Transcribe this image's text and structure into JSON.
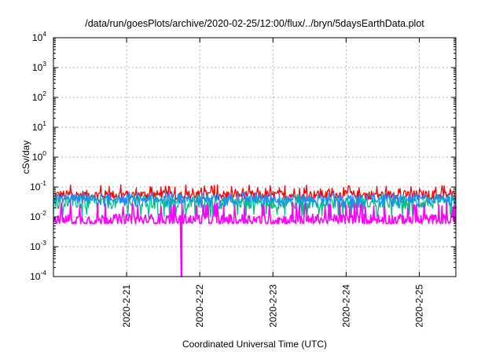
{
  "chart_data": {
    "type": "line",
    "title": "/data/run/goesPlots/archive/2020-02-25/12:00/flux/../bryn/5daysEarthData.plot",
    "xlabel": "Coordinated Universal Time (UTC)",
    "ylabel": "cSv/day",
    "yscale": "log",
    "ylim": [
      0.0001,
      10000
    ],
    "y_ticks": [
      {
        "base": "10",
        "exp": "-4",
        "value": 0.0001
      },
      {
        "base": "10",
        "exp": "-3",
        "value": 0.001
      },
      {
        "base": "10",
        "exp": "-2",
        "value": 0.01
      },
      {
        "base": "10",
        "exp": "-1",
        "value": 0.1
      },
      {
        "base": "10",
        "exp": "0",
        "value": 1
      },
      {
        "base": "10",
        "exp": "1",
        "value": 10
      },
      {
        "base": "10",
        "exp": "2",
        "value": 100
      },
      {
        "base": "10",
        "exp": "3",
        "value": 1000
      },
      {
        "base": "10",
        "exp": "4",
        "value": 10000
      }
    ],
    "xlim": [
      "2020-02-20T00:00",
      "2020-02-25T12:00"
    ],
    "x_ticks": [
      {
        "label": "2020-2-21",
        "value": "2020-02-21T00:00"
      },
      {
        "label": "2020-2-22",
        "value": "2020-02-22T00:00"
      },
      {
        "label": "2020-2-23",
        "value": "2020-02-23T00:00"
      },
      {
        "label": "2020-2-24",
        "value": "2020-02-24T00:00"
      },
      {
        "label": "2020-2-25",
        "value": "2020-02-25T00:00"
      }
    ],
    "grid": true,
    "legend": "none",
    "series": [
      {
        "color": "#ff0000",
        "center": 0.055,
        "low": 0.035,
        "high": 0.12
      },
      {
        "color": "#00c080",
        "center": 0.03,
        "low": 0.01,
        "high": 0.06
      },
      {
        "color": "#1a8cff",
        "center": 0.04,
        "low": 0.02,
        "high": 0.07
      },
      {
        "color": "#ff00ff",
        "center": 0.008,
        "low": 0.006,
        "high": 0.03,
        "spike": {
          "x": "2020-02-21T18:00",
          "value": 0.0001
        }
      }
    ]
  }
}
